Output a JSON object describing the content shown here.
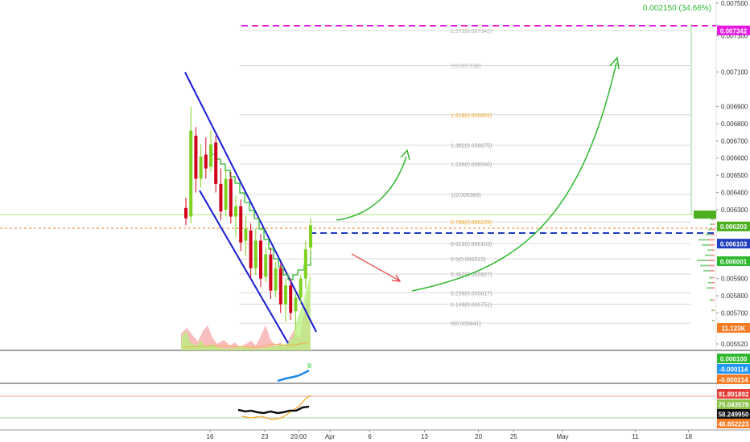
{
  "chart_data": {
    "type": "candlestick",
    "main_pane": {
      "y_axis": {
        "scale": "linear",
        "range": [
          0.00545,
          0.00755
        ],
        "tick_labels": [
          {
            "value": 0.0075,
            "label": "0.007500"
          },
          {
            "value": 0.00731,
            "label": "0.007300"
          },
          {
            "value": 0.0071,
            "label": "0.007100"
          },
          {
            "value": 0.0069,
            "label": "0.006900"
          },
          {
            "value": 0.0068,
            "label": "0.006800"
          },
          {
            "value": 0.0067,
            "label": "0.006700"
          },
          {
            "value": 0.0066,
            "label": "0.006600"
          },
          {
            "value": 0.0065,
            "label": "0.006500"
          },
          {
            "value": 0.0064,
            "label": "0.006400"
          },
          {
            "value": 0.0063,
            "label": "0.006300"
          },
          {
            "value": 0.0059,
            "label": "0.005900"
          },
          {
            "value": 0.0058,
            "label": "0.005800"
          },
          {
            "value": 0.0057,
            "label": "0.005700"
          },
          {
            "value": 0.00552,
            "label": "0.005520"
          }
        ]
      },
      "price_tags": [
        {
          "value": 0.007342,
          "label": "0.007342",
          "color": "#e619e0"
        },
        {
          "value": 0.006203,
          "label": "0.006203",
          "color": "#4caf1f"
        },
        {
          "value": 0.006103,
          "label": "0.006103",
          "color": "#1f3fbf"
        },
        {
          "value": 0.006001,
          "label": "0.006001",
          "color": "#2db82d"
        }
      ],
      "volume_tag": {
        "label": "11.123K",
        "color": "#f57c25"
      },
      "top_annotation": {
        "label": "0.002150 (34.66%)",
        "color": "#2db82d"
      },
      "fibonacci": [
        {
          "ratio": "2.272",
          "value": 0.007342,
          "label": "2.272(0.007342)",
          "color": "#b0b0b0"
        },
        {
          "ratio": "2",
          "value": 0.007138,
          "label": "2(0.007138)",
          "color": "#b0b0b0"
        },
        {
          "ratio": "1.618",
          "value": 0.006852,
          "label": "1.618(0.006852)",
          "color": "#f5a623"
        },
        {
          "ratio": "1.382",
          "value": 0.006675,
          "label": "1.382(0.006675)",
          "color": "#9e9e9e"
        },
        {
          "ratio": "1.236",
          "value": 0.006566,
          "label": "1.236(0.006566)",
          "color": "#9e9e9e"
        },
        {
          "ratio": "1",
          "value": 0.006389,
          "label": "1(0.006389)",
          "color": "#9e9e9e"
        },
        {
          "ratio": "0.786",
          "value": 0.006229,
          "label": "0.786(0.006229)",
          "color": "#f5a623"
        },
        {
          "ratio": "0.618",
          "value": 0.006103,
          "label": "0.618(0.006103)",
          "color": "#9e9e9e"
        },
        {
          "ratio": "0.5",
          "value": 0.006015,
          "label": "0.5(0.006015)",
          "color": "#9e9e9e"
        },
        {
          "ratio": "0.382",
          "value": 0.005927,
          "label": "0.382(0.005927)",
          "color": "#9e9e9e"
        },
        {
          "ratio": "0.236",
          "value": 0.005817,
          "label": "0.236(0.005817)",
          "color": "#9e9e9e"
        },
        {
          "ratio": "0.148",
          "value": 0.005751,
          "label": "0.148(0.005751)",
          "color": "#9e9e9e"
        },
        {
          "ratio": "0",
          "value": 0.005641,
          "label": "0(0.005641)",
          "color": "#9e9e9e"
        }
      ],
      "candles": [
        {
          "o": 0.00631,
          "h": 0.00637,
          "l": 0.00621,
          "c": 0.00625
        },
        {
          "o": 0.00626,
          "h": 0.0069,
          "l": 0.00622,
          "c": 0.00676
        },
        {
          "o": 0.00673,
          "h": 0.00678,
          "l": 0.0064,
          "c": 0.00648
        },
        {
          "o": 0.00648,
          "h": 0.00668,
          "l": 0.00643,
          "c": 0.00661
        },
        {
          "o": 0.00662,
          "h": 0.00672,
          "l": 0.00648,
          "c": 0.00654
        },
        {
          "o": 0.00655,
          "h": 0.00676,
          "l": 0.00652,
          "c": 0.00668
        },
        {
          "o": 0.00669,
          "h": 0.00673,
          "l": 0.0064,
          "c": 0.00645
        },
        {
          "o": 0.00645,
          "h": 0.00654,
          "l": 0.00624,
          "c": 0.00629
        },
        {
          "o": 0.0063,
          "h": 0.00654,
          "l": 0.00626,
          "c": 0.00648
        },
        {
          "o": 0.00648,
          "h": 0.00652,
          "l": 0.00622,
          "c": 0.00626
        },
        {
          "o": 0.00626,
          "h": 0.00638,
          "l": 0.00614,
          "c": 0.00632
        },
        {
          "o": 0.00632,
          "h": 0.00636,
          "l": 0.00606,
          "c": 0.00611
        },
        {
          "o": 0.00612,
          "h": 0.00626,
          "l": 0.00603,
          "c": 0.00619
        },
        {
          "o": 0.00618,
          "h": 0.00622,
          "l": 0.0059,
          "c": 0.00596
        },
        {
          "o": 0.00596,
          "h": 0.00619,
          "l": 0.00592,
          "c": 0.00612
        },
        {
          "o": 0.00612,
          "h": 0.00616,
          "l": 0.00585,
          "c": 0.0059
        },
        {
          "o": 0.00591,
          "h": 0.00608,
          "l": 0.00588,
          "c": 0.00604
        },
        {
          "o": 0.00604,
          "h": 0.00608,
          "l": 0.00578,
          "c": 0.00583
        },
        {
          "o": 0.00583,
          "h": 0.006,
          "l": 0.00579,
          "c": 0.00596
        },
        {
          "o": 0.00596,
          "h": 0.00599,
          "l": 0.0057,
          "c": 0.00575
        },
        {
          "o": 0.00575,
          "h": 0.0059,
          "l": 0.00565,
          "c": 0.00586
        },
        {
          "o": 0.00586,
          "h": 0.0059,
          "l": 0.00566,
          "c": 0.0057
        },
        {
          "o": 0.00571,
          "h": 0.00582,
          "l": 0.0056,
          "c": 0.00579
        },
        {
          "o": 0.00579,
          "h": 0.00592,
          "l": 0.00575,
          "c": 0.0059
        },
        {
          "o": 0.0059,
          "h": 0.00612,
          "l": 0.00584,
          "c": 0.00607
        },
        {
          "o": 0.00608,
          "h": 0.00625,
          "l": 0.006,
          "c": 0.00621
        }
      ]
    },
    "x_axis": {
      "tick_labels": [
        {
          "label": "16",
          "pos": 0.28
        },
        {
          "label": "23",
          "pos": 0.353
        },
        {
          "label": "20:00",
          "pos": 0.398
        },
        {
          "label": "Apr",
          "pos": 0.44
        },
        {
          "label": "6",
          "pos": 0.493
        },
        {
          "label": "13",
          "pos": 0.566
        },
        {
          "label": "20",
          "pos": 0.638
        },
        {
          "label": "25",
          "pos": 0.685
        },
        {
          "label": "May",
          "pos": 0.75
        },
        {
          "label": "11",
          "pos": 0.847
        },
        {
          "label": "18",
          "pos": 0.918
        }
      ]
    },
    "sub_pane_1": {
      "tags": [
        {
          "label": "0.000100",
          "color": "#2db82d"
        },
        {
          "label": "-0.000114",
          "color": "#2196f3"
        },
        {
          "label": "-0.000214",
          "color": "#f57c25"
        }
      ]
    },
    "sub_pane_2": {
      "tags": [
        {
          "label": "91.891892",
          "color": "#e53935"
        },
        {
          "label": "75.043578",
          "color": "#8bc34a"
        },
        {
          "label": "58.249950",
          "color": "#111111"
        },
        {
          "label": "48.652223",
          "color": "#f57c25"
        }
      ]
    },
    "grid": false
  }
}
